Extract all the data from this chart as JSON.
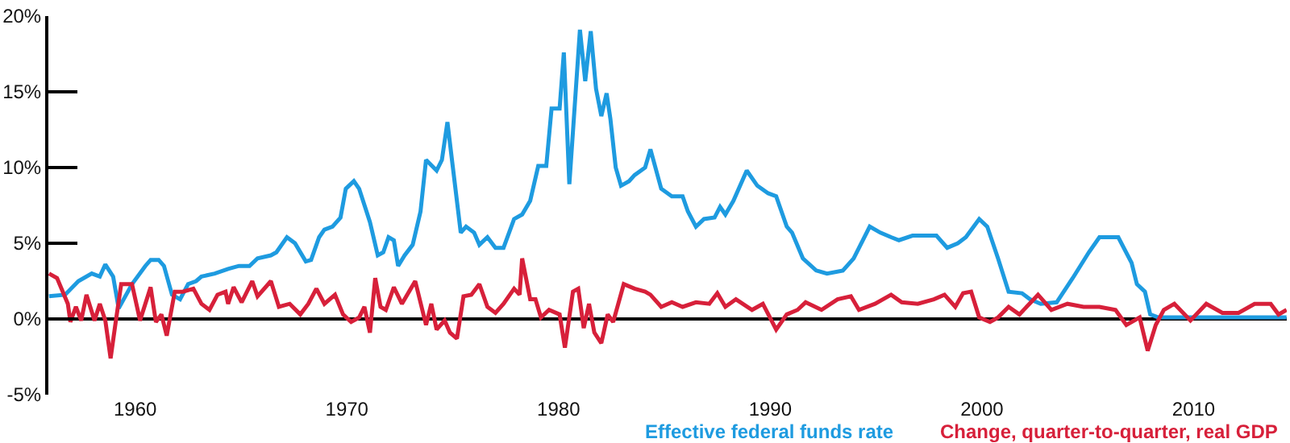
{
  "chart_data": {
    "type": "line",
    "xlim": [
      1955.9,
      2014.4
    ],
    "xticks": [
      1960,
      1970,
      1980,
      1990,
      2000,
      2010
    ],
    "ylim": [
      -5,
      20
    ],
    "yticks": [
      {
        "value": -5,
        "label": "-5%"
      },
      {
        "value": 0,
        "label": "0%"
      },
      {
        "value": 5,
        "label": "5%"
      },
      {
        "value": 10,
        "label": "10%"
      },
      {
        "value": 15,
        "label": "15%"
      },
      {
        "value": 20,
        "label": "20%"
      }
    ],
    "grid": false,
    "legend": "bottom",
    "ref_lines": [
      {
        "axis": "y",
        "value": 0,
        "color": "#000000"
      }
    ],
    "marker": "none",
    "line_style": "solid",
    "series": [
      {
        "name": "Effective federal funds rate",
        "color": "#1e9be0",
        "x": [
          1955.93,
          1956.69,
          1957.32,
          1957.95,
          1958.33,
          1958.59,
          1958.96,
          1959.22,
          1959.85,
          1960.48,
          1960.73,
          1961.11,
          1961.36,
          1961.74,
          1962.12,
          1962.5,
          1962.88,
          1963.13,
          1963.76,
          1964.39,
          1964.9,
          1965.4,
          1965.78,
          1966.41,
          1966.67,
          1967.17,
          1967.55,
          1968.06,
          1968.31,
          1968.69,
          1968.94,
          1969.32,
          1969.7,
          1969.95,
          1970.33,
          1970.58,
          1971.09,
          1971.46,
          1971.72,
          1971.97,
          1972.22,
          1972.42,
          1972.73,
          1973.11,
          1973.48,
          1973.74,
          1974.24,
          1974.49,
          1974.75,
          1975.0,
          1975.38,
          1975.63,
          1976.01,
          1976.26,
          1976.64,
          1977.02,
          1977.4,
          1977.9,
          1978.28,
          1978.66,
          1979.04,
          1979.42,
          1979.67,
          1980.05,
          1980.25,
          1980.51,
          1981.01,
          1981.26,
          1981.52,
          1981.77,
          1982.02,
          1982.27,
          1982.45,
          1982.7,
          1982.95,
          1983.33,
          1983.59,
          1984.09,
          1984.34,
          1984.85,
          1985.35,
          1985.86,
          1986.11,
          1986.49,
          1986.87,
          1987.37,
          1987.63,
          1987.88,
          1988.26,
          1988.89,
          1989.39,
          1989.9,
          1990.28,
          1990.78,
          1991.03,
          1991.54,
          1992.17,
          1992.68,
          1993.43,
          1993.94,
          1994.7,
          1995.2,
          1995.71,
          1996.08,
          1996.72,
          1997.85,
          1998.36,
          1998.86,
          1999.24,
          1999.87,
          2000.25,
          2000.76,
          2001.26,
          2001.89,
          2002.27,
          2002.78,
          2003.53,
          2004.29,
          2005.05,
          2005.55,
          2006.44,
          2007.07,
          2007.32,
          2007.7,
          2007.95,
          2008.33,
          2014.39
        ],
        "values": [
          1.5,
          1.6,
          2.5,
          3.0,
          2.8,
          3.6,
          2.8,
          0.7,
          2.3,
          3.5,
          3.9,
          3.9,
          3.5,
          1.6,
          1.3,
          2.3,
          2.5,
          2.8,
          3.0,
          3.3,
          3.5,
          3.5,
          4.0,
          4.2,
          4.4,
          5.4,
          5.0,
          3.8,
          3.9,
          5.4,
          5.9,
          6.1,
          6.7,
          8.6,
          9.1,
          8.6,
          6.4,
          4.2,
          4.4,
          5.4,
          5.2,
          3.5,
          4.2,
          4.9,
          7.1,
          10.5,
          9.8,
          10.5,
          13.0,
          10.1,
          5.7,
          6.1,
          5.7,
          4.9,
          5.4,
          4.7,
          4.7,
          6.6,
          6.9,
          7.8,
          10.1,
          10.1,
          13.9,
          13.9,
          17.6,
          8.9,
          19.1,
          15.7,
          19.0,
          15.2,
          13.4,
          14.9,
          13.2,
          10.0,
          8.8,
          9.1,
          9.5,
          10.0,
          11.2,
          8.6,
          8.1,
          8.1,
          7.1,
          6.1,
          6.6,
          6.7,
          7.4,
          6.9,
          7.8,
          9.8,
          8.8,
          8.3,
          8.1,
          6.1,
          5.7,
          4.0,
          3.2,
          3.0,
          3.2,
          4.0,
          6.1,
          5.7,
          5.4,
          5.2,
          5.5,
          5.5,
          4.7,
          5.0,
          5.4,
          6.6,
          6.1,
          4.0,
          1.8,
          1.7,
          1.3,
          1.0,
          1.1,
          2.7,
          4.4,
          5.4,
          5.4,
          3.7,
          2.3,
          1.8,
          0.3,
          0.1,
          0.1
        ]
      },
      {
        "name": "Change, quarter-to-quarter, real GDP",
        "color": "#d7203a",
        "x": [
          1955.93,
          1956.31,
          1956.82,
          1956.94,
          1957.2,
          1957.45,
          1957.7,
          1958.08,
          1958.33,
          1958.59,
          1958.84,
          1959.09,
          1959.34,
          1959.85,
          1960.23,
          1960.73,
          1960.98,
          1961.24,
          1961.49,
          1961.87,
          1962.25,
          1962.75,
          1963.13,
          1963.51,
          1963.89,
          1964.27,
          1964.39,
          1964.65,
          1965.03,
          1965.53,
          1965.78,
          1966.41,
          1966.79,
          1967.3,
          1967.8,
          1968.18,
          1968.56,
          1968.94,
          1969.44,
          1969.82,
          1970.2,
          1970.58,
          1970.83,
          1971.09,
          1971.34,
          1971.59,
          1971.84,
          1972.22,
          1972.6,
          1973.23,
          1973.74,
          1973.99,
          1974.24,
          1974.62,
          1974.87,
          1975.2,
          1975.51,
          1975.88,
          1976.26,
          1976.64,
          1977.02,
          1977.4,
          1977.9,
          1978.16,
          1978.28,
          1978.66,
          1978.91,
          1979.17,
          1979.55,
          1980.05,
          1980.3,
          1980.68,
          1980.93,
          1981.19,
          1981.44,
          1981.69,
          1982.02,
          1982.32,
          1982.58,
          1983.08,
          1983.59,
          1984.09,
          1984.34,
          1984.85,
          1985.35,
          1985.86,
          1986.49,
          1987.12,
          1987.5,
          1987.88,
          1988.38,
          1989.14,
          1989.65,
          1990.28,
          1990.78,
          1991.29,
          1991.67,
          1992.42,
          1993.18,
          1993.81,
          1994.19,
          1994.95,
          1995.71,
          1996.21,
          1996.97,
          1997.73,
          1998.23,
          1998.74,
          1999.11,
          1999.49,
          1999.87,
          2000.38,
          2000.76,
          2001.26,
          2001.77,
          2002.65,
          2003.28,
          2004.04,
          2004.8,
          2005.55,
          2006.31,
          2006.82,
          2007.2,
          2007.45,
          2007.83,
          2008.21,
          2008.59,
          2009.09,
          2009.85,
          2010.6,
          2011.36,
          2012.12,
          2012.88,
          2013.64,
          2014.01,
          2014.39
        ],
        "values": [
          3.0,
          2.7,
          1.0,
          -0.2,
          0.8,
          -0.1,
          1.6,
          -0.1,
          1.0,
          -0.1,
          -2.6,
          -0.1,
          2.3,
          2.3,
          -0.1,
          2.1,
          -0.2,
          0.3,
          -1.1,
          1.8,
          1.8,
          2.0,
          1.0,
          0.6,
          1.6,
          1.8,
          1.0,
          2.1,
          1.1,
          2.5,
          1.5,
          2.5,
          0.8,
          1.0,
          0.3,
          1.0,
          2.0,
          1.0,
          1.6,
          0.3,
          -0.2,
          0.1,
          0.8,
          -0.9,
          2.7,
          0.8,
          0.6,
          2.1,
          1.0,
          2.5,
          -0.4,
          1.0,
          -0.7,
          -0.1,
          -0.9,
          -1.3,
          1.5,
          1.6,
          2.3,
          0.8,
          0.4,
          1.0,
          2.0,
          1.6,
          4.0,
          1.3,
          1.3,
          0.1,
          0.6,
          0.3,
          -1.9,
          1.8,
          2.0,
          -0.6,
          1.0,
          -0.9,
          -1.6,
          0.3,
          -0.2,
          2.3,
          2.0,
          1.8,
          1.6,
          0.8,
          1.1,
          0.8,
          1.1,
          1.0,
          1.7,
          0.8,
          1.3,
          0.6,
          1.0,
          -0.7,
          0.3,
          0.6,
          1.1,
          0.6,
          1.3,
          1.5,
          0.6,
          1.0,
          1.6,
          1.1,
          1.0,
          1.3,
          1.6,
          0.8,
          1.7,
          1.8,
          0.1,
          -0.2,
          0.1,
          0.8,
          0.3,
          1.6,
          0.6,
          1.0,
          0.8,
          0.8,
          0.6,
          -0.4,
          -0.1,
          0.1,
          -2.1,
          -0.4,
          0.6,
          1.0,
          -0.1,
          1.0,
          0.4,
          0.4,
          1.0,
          1.0,
          0.3,
          0.6
        ]
      }
    ]
  }
}
